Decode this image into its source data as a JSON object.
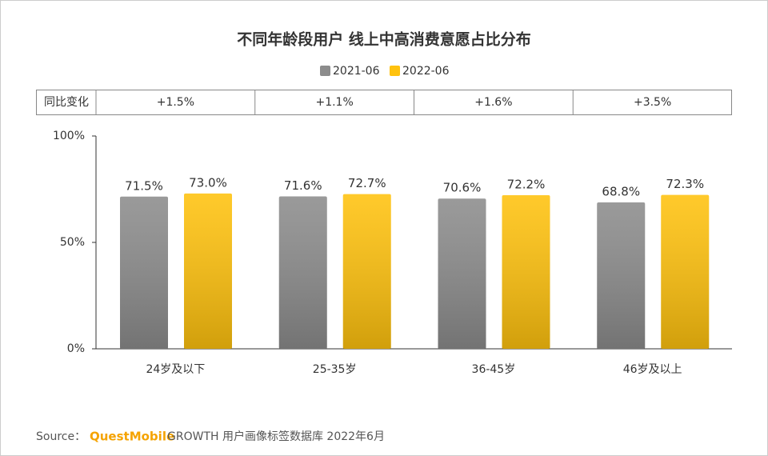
{
  "chart_data": {
    "type": "bar",
    "title": "不同年龄段用户 线上中高消费意愿占比分布",
    "categories": [
      "24岁及以下",
      "25-35岁",
      "36-45岁",
      "46岁及以上"
    ],
    "series": [
      {
        "name": "2021-06",
        "color": "#8c8c8c",
        "values": [
          71.5,
          71.6,
          70.6,
          68.8
        ],
        "value_labels": [
          "71.5%",
          "71.6%",
          "70.6%",
          "68.8%"
        ]
      },
      {
        "name": "2022-06",
        "color": "#ffc20e",
        "values": [
          73.0,
          72.7,
          72.2,
          72.3
        ],
        "value_labels": [
          "73.0%",
          "72.7%",
          "72.2%",
          "72.3%"
        ]
      }
    ],
    "ylim": [
      0,
      100
    ],
    "yticks": [
      {
        "value": 0,
        "label": "0%"
      },
      {
        "value": 50,
        "label": "50%"
      },
      {
        "value": 100,
        "label": "100%"
      }
    ],
    "yoy_label": "同比变化",
    "yoy": [
      "+1.5%",
      "+1.1%",
      "+1.6%",
      "+3.5%"
    ],
    "source_prefix": "Source：",
    "source_brand": "QuestMobile",
    "source_text": "GROWTH 用户画像标签数据库 2022年6月"
  }
}
